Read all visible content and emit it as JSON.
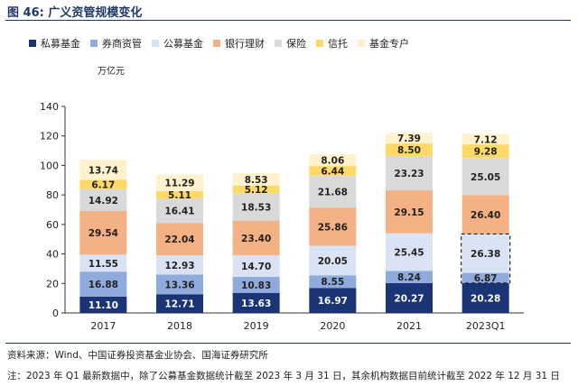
{
  "figure_title": "图 46:  广义资管规模变化",
  "source_text": "资料来源：Wind、中国证券投资基金业协会、国海证券研究所",
  "note_text": "注：2023 年 Q1 最新数据中，除了公募基金数据统计截至 2023 年 3 月 31 日，其余机构数据目前统计截至 2022 年 12 月 31 日",
  "chart_data": {
    "type": "bar",
    "stacked": true,
    "title": "",
    "xlabel": "",
    "ylabel": "万亿元",
    "ylim": [
      0,
      140
    ],
    "yticks": [
      0,
      20,
      40,
      60,
      80,
      100,
      120,
      140
    ],
    "categories": [
      "2017",
      "2018",
      "2019",
      "2020",
      "2021",
      "2023Q1"
    ],
    "legend_position": "top",
    "grid": false,
    "series": [
      {
        "name": "私募基金",
        "color": "#1a3475",
        "label_color": "#ffffff",
        "values": [
          11.1,
          12.71,
          13.63,
          16.97,
          20.27,
          20.28
        ]
      },
      {
        "name": "券商资管",
        "color": "#8faadc",
        "label_color": "#222222",
        "values": [
          16.88,
          13.36,
          10.83,
          8.55,
          8.24,
          6.87
        ]
      },
      {
        "name": "公募基金",
        "color": "#dae3f3",
        "label_color": "#222222",
        "values": [
          11.55,
          12.93,
          14.7,
          20.05,
          25.45,
          26.38
        ]
      },
      {
        "name": "银行理财",
        "color": "#f4b183",
        "label_color": "#222222",
        "values": [
          29.54,
          22.04,
          23.4,
          25.86,
          29.15,
          26.4
        ]
      },
      {
        "name": "保险",
        "color": "#d9d9d9",
        "label_color": "#222222",
        "values": [
          14.92,
          16.41,
          18.53,
          21.68,
          23.23,
          25.05
        ]
      },
      {
        "name": "信托",
        "color": "#ffd966",
        "label_color": "#222222",
        "values": [
          6.17,
          5.11,
          5.12,
          6.44,
          8.5,
          9.28
        ]
      },
      {
        "name": "基金专户",
        "color": "#fff2cc",
        "label_color": "#222222",
        "values": [
          13.74,
          11.29,
          8.53,
          8.06,
          7.39,
          7.12
        ]
      }
    ],
    "annotations": [
      {
        "type": "dashed-box",
        "category": "2023Q1",
        "series": [
          "券商资管",
          "公募基金"
        ]
      }
    ]
  }
}
